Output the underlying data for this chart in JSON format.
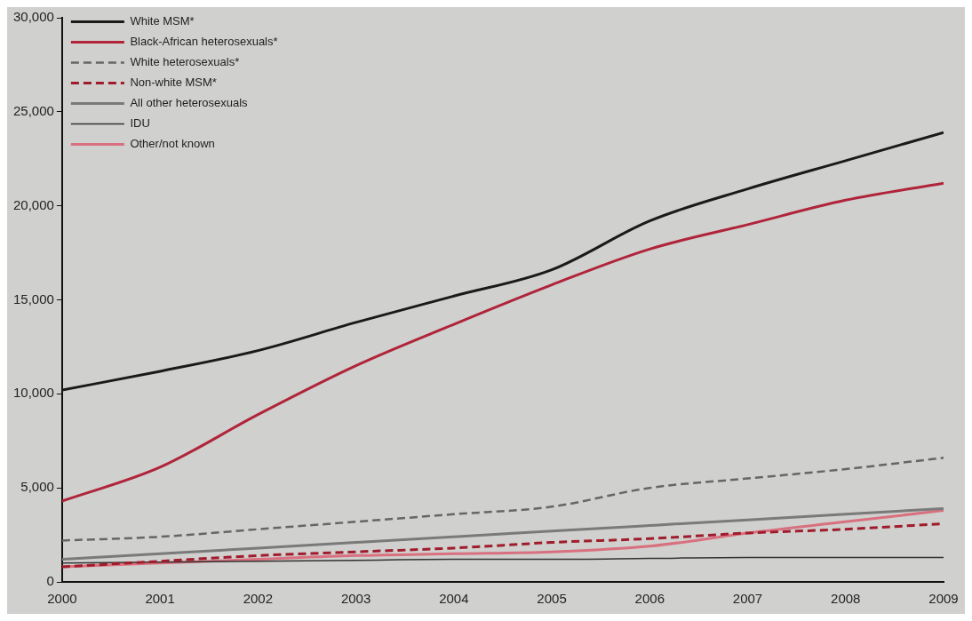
{
  "chart_data": {
    "type": "line",
    "x": [
      2000,
      2001,
      2002,
      2003,
      2004,
      2005,
      2006,
      2007,
      2008,
      2009
    ],
    "xlim": [
      2000,
      2009
    ],
    "xticks": [
      2000,
      2001,
      2002,
      2003,
      2004,
      2005,
      2006,
      2007,
      2008,
      2009
    ],
    "ylim": [
      0,
      30000
    ],
    "yticks": [
      {
        "value": 0,
        "label": "0"
      },
      {
        "value": 5000,
        "label": "5,000"
      },
      {
        "value": 10000,
        "label": "10,000"
      },
      {
        "value": 15000,
        "label": "15,000"
      },
      {
        "value": 20000,
        "label": "20,000"
      },
      {
        "value": 25000,
        "label": "25,000"
      },
      {
        "value": 30000,
        "label": "30,000"
      }
    ],
    "grid": false,
    "legend": "top left",
    "marker": "none",
    "series": [
      {
        "name": "White MSM*",
        "color": "#1a1a1a",
        "line_style": "solid",
        "values": [
          10200,
          11200,
          12300,
          13800,
          15200,
          16600,
          19200,
          20900,
          22400,
          23900
        ]
      },
      {
        "name": "Black-African heterosexuals*",
        "color": "#b0243a",
        "line_style": "solid",
        "values": [
          4300,
          6100,
          8900,
          11500,
          13700,
          15800,
          17700,
          19000,
          20300,
          21200
        ]
      },
      {
        "name": "White heterosexuals*",
        "color": "#666666",
        "line_style": "dashed",
        "values": [
          2200,
          2400,
          2800,
          3200,
          3600,
          4000,
          5000,
          5500,
          6000,
          6600
        ]
      },
      {
        "name": "Non-white MSM*",
        "color": "#a01c2c",
        "line_style": "dashed",
        "values": [
          800,
          1100,
          1400,
          1600,
          1800,
          2100,
          2300,
          2600,
          2800,
          3100
        ]
      },
      {
        "name": "All other heterosexuals",
        "color": "#7a7a7a",
        "line_style": "solid",
        "values": [
          1200,
          1500,
          1800,
          2100,
          2400,
          2700,
          3000,
          3300,
          3600,
          3900
        ]
      },
      {
        "name": "IDU",
        "color": "#333333",
        "line_style": "solid",
        "values": [
          1000,
          1050,
          1100,
          1150,
          1200,
          1200,
          1250,
          1300,
          1300,
          1300
        ]
      },
      {
        "name": "Other/not known",
        "color": "#d9707f",
        "line_style": "solid",
        "values": [
          800,
          1000,
          1200,
          1400,
          1500,
          1600,
          1900,
          2600,
          3200,
          3800
        ]
      }
    ]
  }
}
